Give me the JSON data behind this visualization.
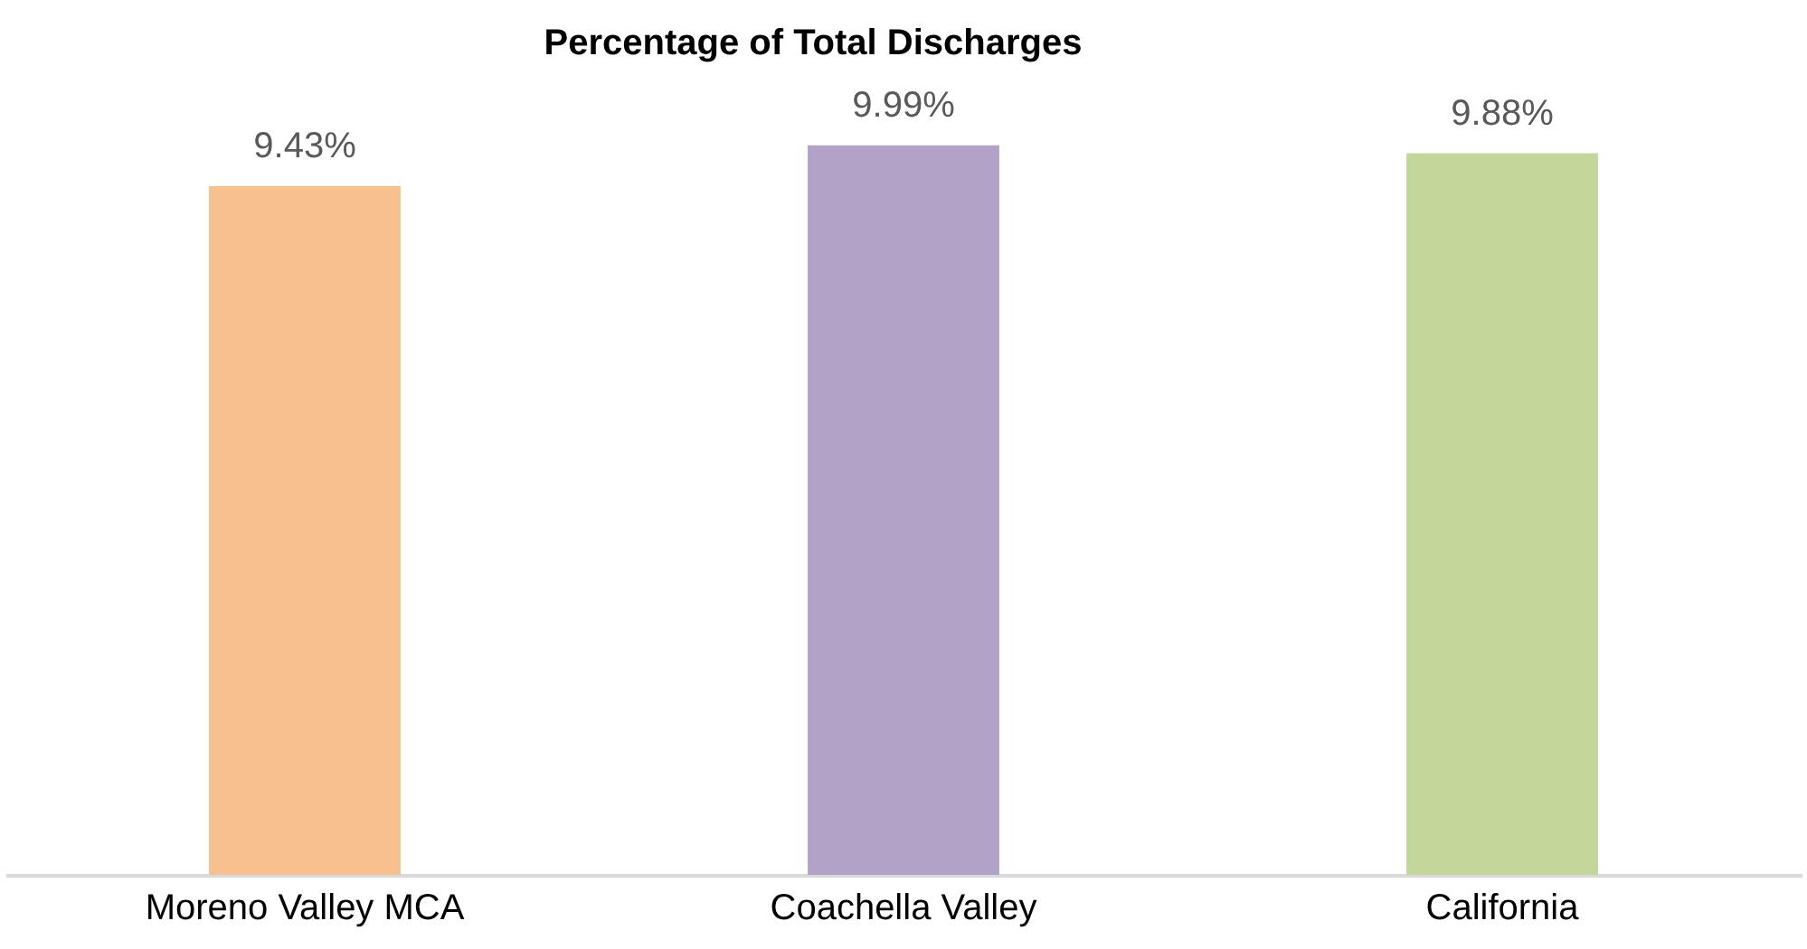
{
  "chart_data": {
    "type": "bar",
    "title": "Percentage of Total Discharges",
    "categories": [
      "Moreno Valley MCA",
      "Coachella Valley",
      "California"
    ],
    "values": [
      9.43,
      9.99,
      9.88
    ],
    "colors": [
      "#f9c08f",
      "#b3a2c7",
      "#c4d79b"
    ],
    "value_labels": [
      "9.43%",
      "9.99%",
      "9.88%"
    ],
    "tick_labels": "x"
  }
}
